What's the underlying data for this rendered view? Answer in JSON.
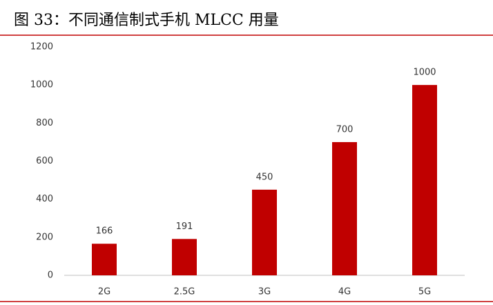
{
  "chart_data": {
    "type": "bar",
    "title": "图 33：不同通信制式手机 MLCC 用量",
    "categories": [
      "2G",
      "2.5G",
      "3G",
      "4G",
      "5G"
    ],
    "values": [
      166,
      191,
      450,
      700,
      1000
    ],
    "color": "#c00000",
    "ylim": [
      0,
      1200
    ],
    "yticks": [
      0,
      200,
      400,
      600,
      800,
      1000,
      1200
    ],
    "grid": false
  }
}
